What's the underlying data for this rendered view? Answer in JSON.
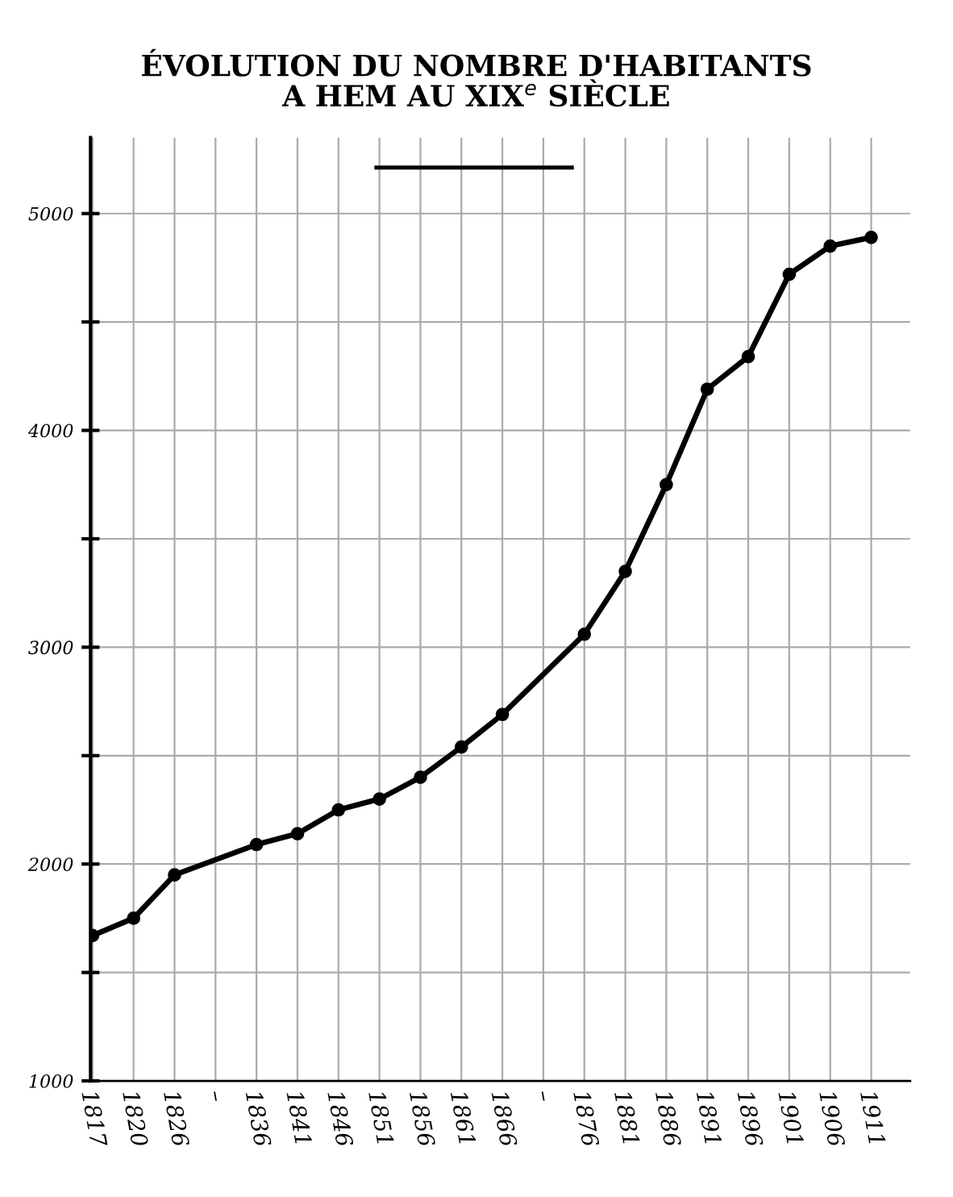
{
  "chart_data": {
    "type": "line",
    "title": "ÉVOLUTION DU NOMBRE D'HABITANTS\nA HEM AU XIX$^{e}$ SIÈCLE",
    "categories": [
      "1817",
      "1820",
      "1826",
      "–",
      "1836",
      "1841",
      "1846",
      "1851",
      "1856",
      "1861",
      "1866",
      "–",
      "1876",
      "1881",
      "1886",
      "1891",
      "1896",
      "1901",
      "1906",
      "1911"
    ],
    "series": [
      {
        "color": "#000000",
        "values": [
          1670,
          1750,
          1950,
          null,
          2090,
          2140,
          2250,
          2300,
          2400,
          2540,
          2690,
          null,
          3060,
          3350,
          3750,
          4190,
          4340,
          4720,
          4850,
          4890
        ]
      }
    ],
    "ylim": [
      1000,
      5350
    ],
    "yticks": [
      1000,
      {
        "value": 1500,
        "label": null
      },
      2000,
      {
        "value": 2500,
        "label": null
      },
      3000,
      {
        "value": 3500,
        "label": null
      },
      4000,
      {
        "value": 4500,
        "label": null
      },
      5000
    ],
    "grid": true,
    "marker": "circle",
    "line_style": "solid",
    "legend": false
  }
}
